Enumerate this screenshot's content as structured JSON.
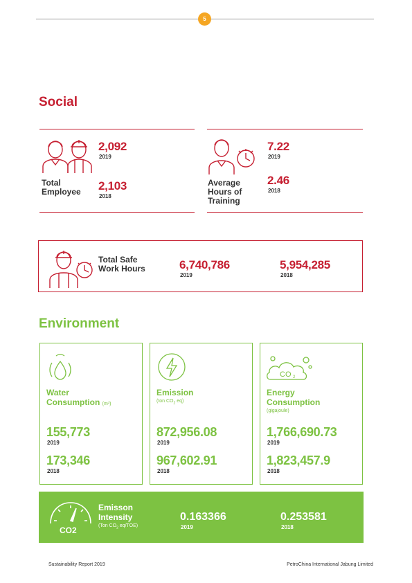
{
  "header": {
    "page_number": "5"
  },
  "social": {
    "title": "Social",
    "employees": {
      "label_line1": "Total",
      "label_line2": "Employee",
      "value_2019": "2,092",
      "year_2019": "2019",
      "value_2018": "2,103",
      "year_2018": "2018"
    },
    "training": {
      "label_line1": "Average",
      "label_line2": "Hours of",
      "label_line3": "Training",
      "value_2019": "7.22",
      "year_2019": "2019",
      "value_2018": "2.46",
      "year_2018": "2018"
    },
    "safe_hours": {
      "label_line1": "Total Safe",
      "label_line2": "Work Hours",
      "value_2019": "6,740,786",
      "year_2019": "2019",
      "value_2018": "5,954,285",
      "year_2018": "2018"
    }
  },
  "environment": {
    "title": "Environment",
    "water": {
      "label_line1": "Water",
      "label_line2": "Consumption",
      "unit": "(m³)",
      "value_2019": "155,773",
      "year_2019": "2019",
      "value_2018": "173,346",
      "year_2018": "2018"
    },
    "emission": {
      "label": "Emission",
      "unit_pre": "(ton CO",
      "unit_sub": "2",
      "unit_post": " eq)",
      "value_2019": "872,956.08",
      "year_2019": "2019",
      "value_2018": "967,602.91",
      "year_2018": "2018"
    },
    "energy": {
      "label_line1": "Energy",
      "label_line2": "Consumption",
      "unit": "(gigajoule)",
      "icon_text": "CO",
      "icon_sub": "2",
      "value_2019": "1,766,690.73",
      "year_2019": "2019",
      "value_2018": "1,823,457.9",
      "year_2018": "2018"
    },
    "intensity": {
      "label_line1": "Emisson",
      "label_line2": "Intensity",
      "unit_pre": "(Ton CO",
      "unit_sub": "2",
      "unit_post": " eq/TOE)",
      "gauge_text": "CO2",
      "value_2019": "0.163366",
      "year_2019": "2019",
      "value_2018": "0.253581",
      "year_2018": "2018"
    }
  },
  "footer": {
    "left": "Sustainability Report 2019",
    "right": "PetroChina International Jabung Limited"
  },
  "colors": {
    "red": "#c62032",
    "green": "#7dc242",
    "orange": "#f5a623"
  }
}
